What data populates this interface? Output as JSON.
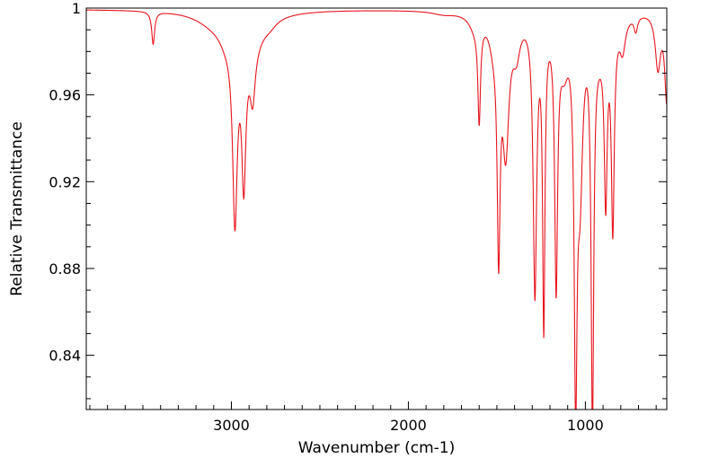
{
  "chart_data": {
    "type": "line",
    "title": "",
    "xlabel": "Wavenumber (cm-1)",
    "ylabel": "Relative Transmittance",
    "xlim": [
      3820,
      540
    ],
    "ylim": [
      0.815,
      1.0
    ],
    "x_reversed": true,
    "x_ticks": [
      3000,
      2000,
      1000
    ],
    "x_tick_labels": [
      "3000",
      "2000",
      "1000"
    ],
    "y_ticks": [
      0.84,
      0.88,
      0.92,
      0.96,
      1.0
    ],
    "y_tick_labels": [
      "0.84",
      "0.88",
      "0.92",
      "0.96",
      "1"
    ],
    "grid": false,
    "series": [
      {
        "color": "#e8141c",
        "baseline": 0.9995,
        "peaks": [
          {
            "x": 3442,
            "depth": 0.015,
            "width": 10
          },
          {
            "x": 3100,
            "depth": 0.005,
            "width": 120
          },
          {
            "x": 2980,
            "depth": 0.085,
            "width": 16
          },
          {
            "x": 2930,
            "depth": 0.064,
            "width": 14
          },
          {
            "x": 2880,
            "depth": 0.025,
            "width": 18
          },
          {
            "x": 2880,
            "depth": 0.012,
            "width": 95
          },
          {
            "x": 3030,
            "depth": 0.007,
            "width": 50
          },
          {
            "x": 2780,
            "depth": 0.002,
            "width": 40
          },
          {
            "x": 1800,
            "depth": 0.0015,
            "width": 80
          },
          {
            "x": 1600,
            "depth": 0.045,
            "width": 9
          },
          {
            "x": 1625,
            "depth": 0.006,
            "width": 40
          },
          {
            "x": 1490,
            "depth": 0.1,
            "width": 10
          },
          {
            "x": 1520,
            "depth": 0.01,
            "width": 30
          },
          {
            "x": 1450,
            "depth": 0.06,
            "width": 22
          },
          {
            "x": 1390,
            "depth": 0.015,
            "width": 25
          },
          {
            "x": 1285,
            "depth": 0.126,
            "width": 12
          },
          {
            "x": 1235,
            "depth": 0.138,
            "width": 8
          },
          {
            "x": 1165,
            "depth": 0.12,
            "width": 10
          },
          {
            "x": 1120,
            "depth": 0.02,
            "width": 30
          },
          {
            "x": 1055,
            "depth": 0.16,
            "width": 10
          },
          {
            "x": 1030,
            "depth": 0.07,
            "width": 18
          },
          {
            "x": 960,
            "depth": 0.18,
            "width": 9
          },
          {
            "x": 920,
            "depth": 0.012,
            "width": 40
          },
          {
            "x": 885,
            "depth": 0.077,
            "width": 10
          },
          {
            "x": 845,
            "depth": 0.094,
            "width": 10
          },
          {
            "x": 790,
            "depth": 0.015,
            "width": 20
          },
          {
            "x": 715,
            "depth": 0.007,
            "width": 12
          },
          {
            "x": 590,
            "depth": 0.025,
            "width": 18
          },
          {
            "x": 540,
            "depth": 0.04,
            "width": 14
          }
        ]
      }
    ]
  }
}
